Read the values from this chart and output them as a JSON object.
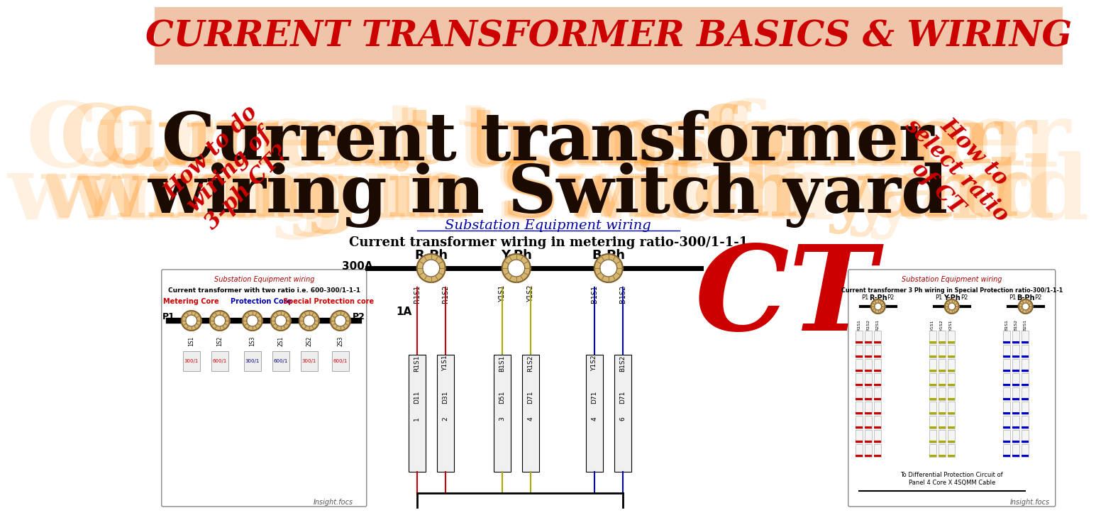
{
  "bg_top_color": "#f0c4a8",
  "bg_main_color": "#ffffff",
  "title_top": "CURRENT TRANSFORMER BASICS & WIRING",
  "title_top_color": "#cc0000",
  "title_main_line1": "Current transformer",
  "title_main_line2": "wiring in Switch yard",
  "title_main_color": "#1a0a00",
  "title_main_glow": "#ff8800",
  "subtitle1": "Substation Equipment wiring",
  "subtitle2": "Current transformer wiring in metering ratio-300/1-1-1",
  "left_text": "How to do\nwiring of\n3-ph CT?",
  "right_text": "How to\nselect ratio\nof CT",
  "ct_text": "CT",
  "ct_color": "#cc0000",
  "phase_labels": [
    "R-Ph",
    "Y-Ph",
    "B-Ph"
  ],
  "current_label": "300A",
  "output_label": "1A",
  "r_color": "#cc0000",
  "y_color": "#aaaa00",
  "b_color": "#0000cc",
  "line_black": "#000000",
  "terminal_labels": [
    "R1S1",
    "R1S2",
    "Y1S1",
    "Y1S2",
    "B1S1",
    "B1S2"
  ],
  "terminal_x": [
    370,
    410,
    490,
    530,
    620,
    660
  ],
  "block_x": [
    370,
    410,
    490,
    530,
    620,
    660
  ],
  "tb_row1": [
    "R1S1",
    "Y1S1",
    "B1S1",
    "R1S2",
    "Y1S2",
    "B1S2"
  ],
  "tb_row2": [
    "D11",
    "D31",
    "D51",
    "D71",
    "D71",
    "D71"
  ],
  "tb_row3": [
    "1",
    "2",
    "3",
    "4",
    "4",
    "6"
  ],
  "left_inset_title1": "Substation Equipment wiring",
  "left_inset_title2": "Current transformer with two ratio i.e. 600-300/1-1-1",
  "left_core_labels": [
    "Metering Core",
    "Protection Core",
    "Special Protection core"
  ],
  "left_core_colors": [
    "#cc0000",
    "#0000aa",
    "#cc0000"
  ],
  "right_inset_title1": "Substation Equipment wiring",
  "right_inset_title2": "Current transformer 3 Ph wiring in Special Protection ratio-300/1-1-1",
  "watermark": "Insight.focs"
}
